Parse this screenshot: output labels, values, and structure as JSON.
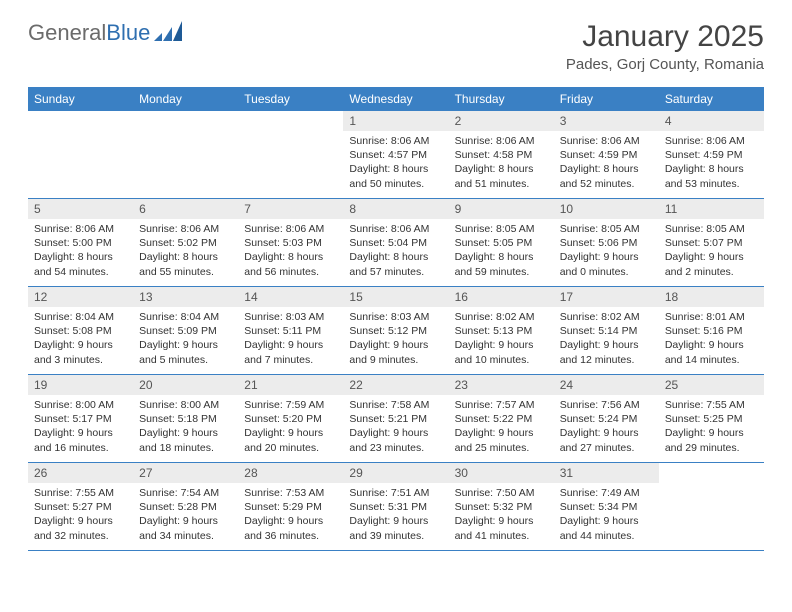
{
  "brand": {
    "part1": "General",
    "part2": "Blue"
  },
  "title": "January 2025",
  "location": "Pades, Gorj County, Romania",
  "colors": {
    "brand_blue": "#2f6fb0",
    "header_blue": "#3a80c4",
    "daynum_bg": "#ececec",
    "text": "#333333"
  },
  "weekdays": [
    "Sunday",
    "Monday",
    "Tuesday",
    "Wednesday",
    "Thursday",
    "Friday",
    "Saturday"
  ],
  "cells": [
    {
      "blank": true
    },
    {
      "blank": true
    },
    {
      "blank": true
    },
    {
      "n": 1,
      "sr": "8:06 AM",
      "ss": "4:57 PM",
      "d1": "Daylight: 8 hours",
      "d2": "and 50 minutes."
    },
    {
      "n": 2,
      "sr": "8:06 AM",
      "ss": "4:58 PM",
      "d1": "Daylight: 8 hours",
      "d2": "and 51 minutes."
    },
    {
      "n": 3,
      "sr": "8:06 AM",
      "ss": "4:59 PM",
      "d1": "Daylight: 8 hours",
      "d2": "and 52 minutes."
    },
    {
      "n": 4,
      "sr": "8:06 AM",
      "ss": "4:59 PM",
      "d1": "Daylight: 8 hours",
      "d2": "and 53 minutes."
    },
    {
      "n": 5,
      "sr": "8:06 AM",
      "ss": "5:00 PM",
      "d1": "Daylight: 8 hours",
      "d2": "and 54 minutes."
    },
    {
      "n": 6,
      "sr": "8:06 AM",
      "ss": "5:02 PM",
      "d1": "Daylight: 8 hours",
      "d2": "and 55 minutes."
    },
    {
      "n": 7,
      "sr": "8:06 AM",
      "ss": "5:03 PM",
      "d1": "Daylight: 8 hours",
      "d2": "and 56 minutes."
    },
    {
      "n": 8,
      "sr": "8:06 AM",
      "ss": "5:04 PM",
      "d1": "Daylight: 8 hours",
      "d2": "and 57 minutes."
    },
    {
      "n": 9,
      "sr": "8:05 AM",
      "ss": "5:05 PM",
      "d1": "Daylight: 8 hours",
      "d2": "and 59 minutes."
    },
    {
      "n": 10,
      "sr": "8:05 AM",
      "ss": "5:06 PM",
      "d1": "Daylight: 9 hours",
      "d2": "and 0 minutes."
    },
    {
      "n": 11,
      "sr": "8:05 AM",
      "ss": "5:07 PM",
      "d1": "Daylight: 9 hours",
      "d2": "and 2 minutes."
    },
    {
      "n": 12,
      "sr": "8:04 AM",
      "ss": "5:08 PM",
      "d1": "Daylight: 9 hours",
      "d2": "and 3 minutes."
    },
    {
      "n": 13,
      "sr": "8:04 AM",
      "ss": "5:09 PM",
      "d1": "Daylight: 9 hours",
      "d2": "and 5 minutes."
    },
    {
      "n": 14,
      "sr": "8:03 AM",
      "ss": "5:11 PM",
      "d1": "Daylight: 9 hours",
      "d2": "and 7 minutes."
    },
    {
      "n": 15,
      "sr": "8:03 AM",
      "ss": "5:12 PM",
      "d1": "Daylight: 9 hours",
      "d2": "and 9 minutes."
    },
    {
      "n": 16,
      "sr": "8:02 AM",
      "ss": "5:13 PM",
      "d1": "Daylight: 9 hours",
      "d2": "and 10 minutes."
    },
    {
      "n": 17,
      "sr": "8:02 AM",
      "ss": "5:14 PM",
      "d1": "Daylight: 9 hours",
      "d2": "and 12 minutes."
    },
    {
      "n": 18,
      "sr": "8:01 AM",
      "ss": "5:16 PM",
      "d1": "Daylight: 9 hours",
      "d2": "and 14 minutes."
    },
    {
      "n": 19,
      "sr": "8:00 AM",
      "ss": "5:17 PM",
      "d1": "Daylight: 9 hours",
      "d2": "and 16 minutes."
    },
    {
      "n": 20,
      "sr": "8:00 AM",
      "ss": "5:18 PM",
      "d1": "Daylight: 9 hours",
      "d2": "and 18 minutes."
    },
    {
      "n": 21,
      "sr": "7:59 AM",
      "ss": "5:20 PM",
      "d1": "Daylight: 9 hours",
      "d2": "and 20 minutes."
    },
    {
      "n": 22,
      "sr": "7:58 AM",
      "ss": "5:21 PM",
      "d1": "Daylight: 9 hours",
      "d2": "and 23 minutes."
    },
    {
      "n": 23,
      "sr": "7:57 AM",
      "ss": "5:22 PM",
      "d1": "Daylight: 9 hours",
      "d2": "and 25 minutes."
    },
    {
      "n": 24,
      "sr": "7:56 AM",
      "ss": "5:24 PM",
      "d1": "Daylight: 9 hours",
      "d2": "and 27 minutes."
    },
    {
      "n": 25,
      "sr": "7:55 AM",
      "ss": "5:25 PM",
      "d1": "Daylight: 9 hours",
      "d2": "and 29 minutes."
    },
    {
      "n": 26,
      "sr": "7:55 AM",
      "ss": "5:27 PM",
      "d1": "Daylight: 9 hours",
      "d2": "and 32 minutes."
    },
    {
      "n": 27,
      "sr": "7:54 AM",
      "ss": "5:28 PM",
      "d1": "Daylight: 9 hours",
      "d2": "and 34 minutes."
    },
    {
      "n": 28,
      "sr": "7:53 AM",
      "ss": "5:29 PM",
      "d1": "Daylight: 9 hours",
      "d2": "and 36 minutes."
    },
    {
      "n": 29,
      "sr": "7:51 AM",
      "ss": "5:31 PM",
      "d1": "Daylight: 9 hours",
      "d2": "and 39 minutes."
    },
    {
      "n": 30,
      "sr": "7:50 AM",
      "ss": "5:32 PM",
      "d1": "Daylight: 9 hours",
      "d2": "and 41 minutes."
    },
    {
      "n": 31,
      "sr": "7:49 AM",
      "ss": "5:34 PM",
      "d1": "Daylight: 9 hours",
      "d2": "and 44 minutes."
    },
    {
      "blank": true
    }
  ],
  "labels": {
    "sunrise": "Sunrise: ",
    "sunset": "Sunset: "
  }
}
